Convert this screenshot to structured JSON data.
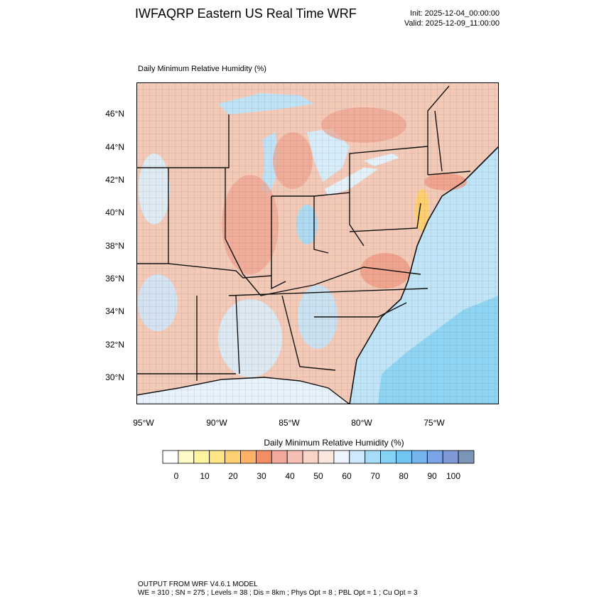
{
  "header": {
    "title": "IWFAQRP Eastern US Real Time WRF",
    "init": "Init: 2025-12-04_00:00:00",
    "valid": "Valid: 2025-12-09_11:00:00"
  },
  "map": {
    "subtitle": "Daily Minimum Relative Humidity   (%)",
    "lat_labels": [
      "46°N",
      "44°N",
      "42°N",
      "40°N",
      "38°N",
      "36°N",
      "34°N",
      "32°N",
      "30°N"
    ],
    "lon_labels": [
      "95°W",
      "90°W",
      "85°W",
      "80°W",
      "75°W"
    ]
  },
  "colorbar": {
    "title": "Daily Minimum Relative Humidity  (%)",
    "tick_labels": [
      "0",
      "10",
      "20",
      "30",
      "40",
      "50",
      "60",
      "70",
      "80",
      "90",
      "100"
    ],
    "colors": [
      "#ffffff",
      "#fffbc8",
      "#fff3a0",
      "#ffe585",
      "#ffd070",
      "#ffb166",
      "#f48c66",
      "#f2a89b",
      "#f5bfb3",
      "#f8d3c8",
      "#fbe6de",
      "#eff3ff",
      "#cfe8fb",
      "#a6dcf7",
      "#86d2f5",
      "#71c5f3",
      "#74b5ef",
      "#79a4e8",
      "#7e99d6",
      "#7a95b8"
    ],
    "outline_color": "#000000"
  },
  "footer": {
    "line1": "OUTPUT FROM WRF V4.6.1 MODEL",
    "line2": "WE = 310 ; SN = 275 ; Levels = 38 ; Dis = 8km ; Phys Opt = 8 ; PBL Opt = 1 ; Cu Opt = 3"
  }
}
